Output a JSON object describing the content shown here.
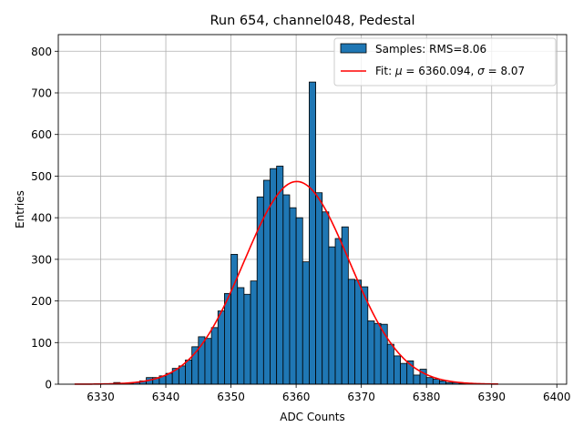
{
  "chart_data": {
    "type": "bar",
    "title": "Run 654, channel048, Pedestal",
    "xlabel": "ADC Counts",
    "ylabel": "Entries",
    "xlim": [
      6323.5,
      6401.5
    ],
    "ylim": [
      0,
      840
    ],
    "xticks": [
      6330,
      6340,
      6350,
      6360,
      6370,
      6380,
      6390,
      6400
    ],
    "yticks": [
      0,
      100,
      200,
      300,
      400,
      500,
      600,
      700,
      800
    ],
    "grid": true,
    "legend_position": "top-right",
    "bin_width": 1,
    "bins_start": [
      6326,
      6327,
      6328,
      6329,
      6330,
      6331,
      6332,
      6333,
      6334,
      6335,
      6336,
      6337,
      6338,
      6339,
      6340,
      6341,
      6342,
      6343,
      6344,
      6345,
      6346,
      6347,
      6348,
      6349,
      6350,
      6351,
      6352,
      6353,
      6354,
      6355,
      6356,
      6357,
      6358,
      6359,
      6360,
      6361,
      6362,
      6363,
      6364,
      6365,
      6366,
      6367,
      6368,
      6369,
      6370,
      6371,
      6372,
      6373,
      6374,
      6375,
      6376,
      6377,
      6378,
      6379,
      6380,
      6381,
      6382,
      6383,
      6384,
      6385,
      6386,
      6387,
      6388,
      6389,
      6390
    ],
    "counts": [
      0,
      0,
      0,
      0,
      0,
      0,
      4,
      2,
      2,
      4,
      8,
      16,
      16,
      20,
      26,
      38,
      44,
      58,
      90,
      114,
      110,
      136,
      176,
      218,
      312,
      232,
      216,
      248,
      450,
      490,
      518,
      524,
      455,
      424,
      400,
      294,
      726,
      460,
      414,
      330,
      350,
      378,
      252,
      250,
      234,
      152,
      146,
      144,
      96,
      68,
      50,
      56,
      22,
      36,
      16,
      12,
      8,
      4,
      4,
      2,
      0,
      0,
      0,
      0,
      0
    ],
    "series": [
      {
        "name": "Samples: RMS=8.06",
        "kind": "histogram",
        "color": "#1f77b4"
      },
      {
        "name": "Fit: μ = 6360.094, σ = 8.07",
        "kind": "gaussian",
        "mu": 6360.094,
        "sigma": 8.07,
        "amplitude": 487,
        "x_range": [
          6326,
          6391
        ],
        "color": "#ff0000"
      }
    ],
    "legend": {
      "samples_prefix": "Samples: RMS=8.06",
      "fit_prefix": "Fit: ",
      "fit_mu_symbol": "μ",
      "fit_mu_value": " = 6360.094, ",
      "fit_sigma_symbol": "σ",
      "fit_sigma_value": " = 8.07"
    }
  }
}
